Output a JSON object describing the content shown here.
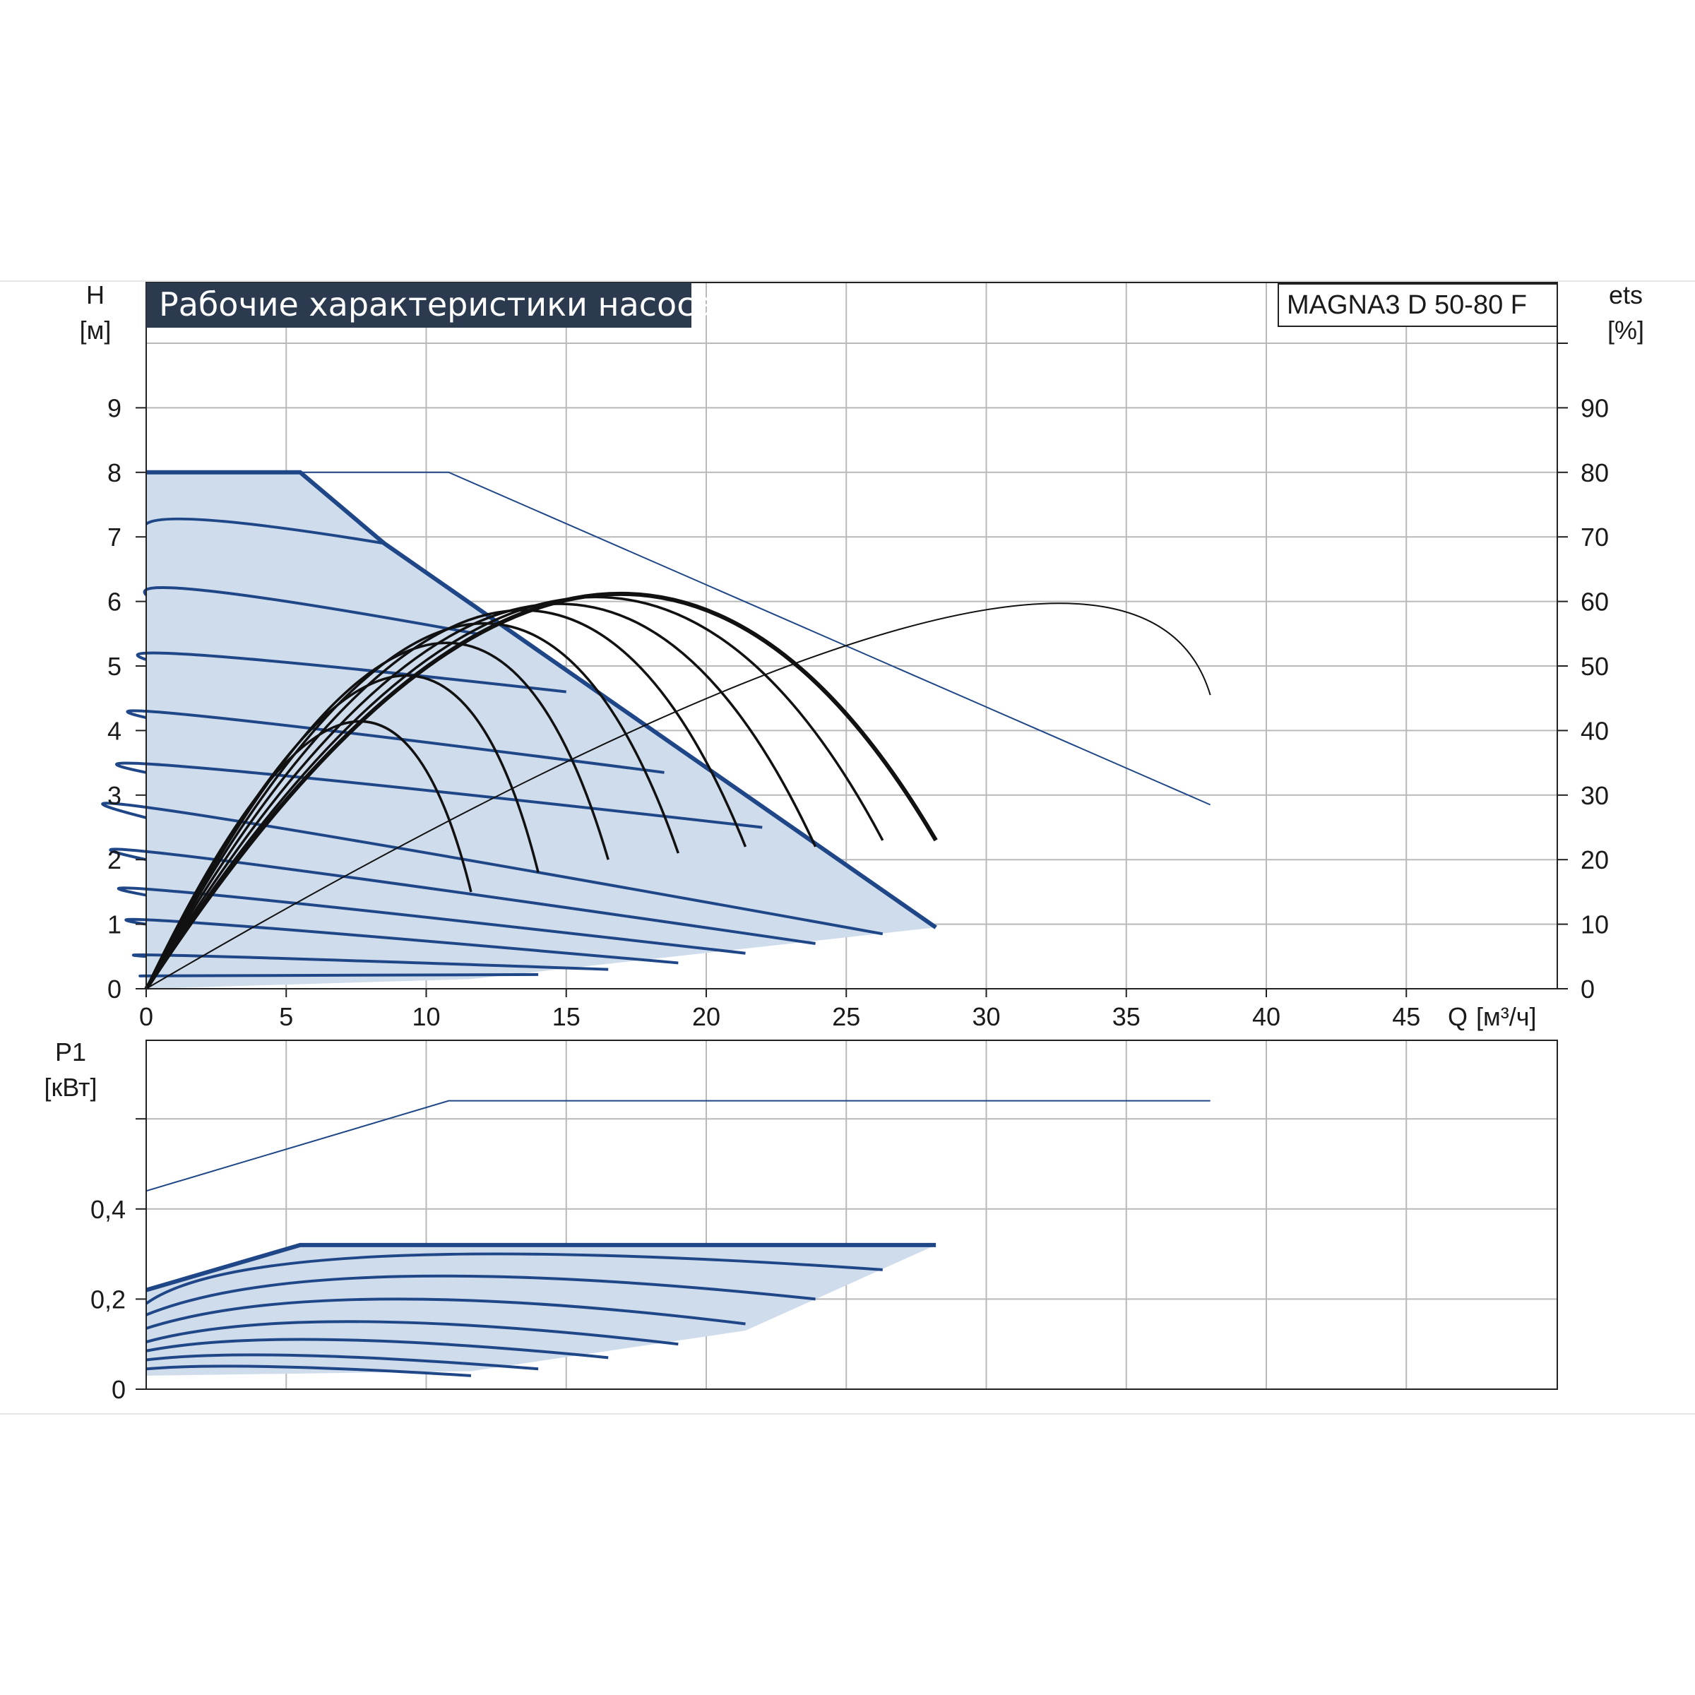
{
  "chart_data": [
    {
      "type": "line",
      "title": "Рабочие характеристики насоса",
      "model": "MAGNA3 D 50-80 F",
      "ylabel": "H",
      "yunit": "[м]",
      "y2label": "ets",
      "y2unit": "[%]",
      "xlabel": "Q",
      "xunit": "[м³/ч]",
      "xlim": [
        0,
        50
      ],
      "ylim": [
        0,
        10
      ],
      "y2lim": [
        0,
        100
      ],
      "x_ticks": [
        "0",
        "5",
        "10",
        "15",
        "20",
        "25",
        "30",
        "35",
        "40",
        "45"
      ],
      "y_ticks": [
        "0",
        "1",
        "2",
        "3",
        "4",
        "5",
        "6",
        "7",
        "8",
        "9"
      ],
      "y2_ticks": [
        "0",
        "10",
        "20",
        "30",
        "40",
        "50",
        "60",
        "70",
        "80",
        "90"
      ],
      "grid": true,
      "colors": {
        "fill": "#cfdcec",
        "curve": "#1f4788",
        "efficiency": "#111111",
        "title_bg": "#2b3a4e"
      },
      "operating_range_envelope": {
        "x": [
          0,
          5.5,
          8.5,
          28.2,
          28.2,
          11.6,
          0
        ],
        "y": [
          8.0,
          8.0,
          6.9,
          0.95,
          0.95,
          0.15,
          0.0
        ]
      },
      "speed_curves_h": [
        {
          "x": [
            0,
            2.5,
            8.5
          ],
          "y": [
            7.2,
            7.25,
            6.9
          ]
        },
        {
          "x": [
            0,
            2.5,
            11.8
          ],
          "y": [
            6.1,
            6.15,
            5.5
          ]
        },
        {
          "x": [
            0,
            2.5,
            15
          ],
          "y": [
            5.1,
            5.15,
            4.6
          ]
        },
        {
          "x": [
            0,
            2.5,
            18.5
          ],
          "y": [
            4.2,
            4.2,
            3.35
          ]
        },
        {
          "x": [
            0,
            2.5,
            22.0
          ],
          "y": [
            3.35,
            3.4,
            2.5
          ]
        },
        {
          "x": [
            0,
            2.5,
            26.3
          ],
          "y": [
            2.65,
            2.65,
            0.85
          ]
        },
        {
          "x": [
            0,
            2.5,
            23.9
          ],
          "y": [
            2.0,
            2.0,
            0.7
          ]
        },
        {
          "x": [
            0,
            2.5,
            21.4
          ],
          "y": [
            1.45,
            1.45,
            0.55
          ]
        },
        {
          "x": [
            0,
            2.5,
            19.0
          ],
          "y": [
            1.0,
            1.0,
            0.4
          ]
        },
        {
          "x": [
            0,
            2.5,
            16.5
          ],
          "y": [
            0.5,
            0.5,
            0.3
          ]
        },
        {
          "x": [
            0,
            2.5,
            14.0
          ],
          "y": [
            0.2,
            0.2,
            0.22
          ]
        }
      ],
      "max_curve_h": {
        "x": [
          0,
          10.8,
          38
        ],
        "y": [
          8.0,
          8.0,
          2.85
        ]
      },
      "efficiency_curves_pct": [
        {
          "x": [
            0,
            7.0,
            11.6
          ],
          "y": [
            0,
            41,
            15
          ]
        },
        {
          "x": [
            0,
            8.5,
            14.0
          ],
          "y": [
            0,
            48,
            18
          ]
        },
        {
          "x": [
            0,
            9.8,
            16.5
          ],
          "y": [
            0,
            53,
            20
          ]
        },
        {
          "x": [
            0,
            11.0,
            19.0
          ],
          "y": [
            0,
            56,
            21
          ]
        },
        {
          "x": [
            0,
            12.2,
            21.4
          ],
          "y": [
            0,
            58,
            22
          ]
        },
        {
          "x": [
            0,
            13.4,
            23.9
          ],
          "y": [
            0,
            59,
            22
          ]
        },
        {
          "x": [
            0,
            14.5,
            26.3
          ],
          "y": [
            0,
            60,
            23
          ]
        },
        {
          "x": [
            0,
            15.3,
            28.2
          ],
          "y": [
            0,
            60.5,
            23
          ]
        }
      ],
      "max_efficiency_pct": {
        "x": [
          0,
          27.0,
          38
        ],
        "y": [
          0,
          55.8,
          45.5
        ]
      }
    },
    {
      "type": "line",
      "ylabel": "P1",
      "yunit": "[кВт]",
      "xlim": [
        0,
        50
      ],
      "ylim": [
        0,
        0.8
      ],
      "y_ticks": [
        "0",
        "0,2",
        "0,4"
      ],
      "grid": true,
      "operating_range_envelope": {
        "x": [
          0,
          5.5,
          28.2,
          21.4,
          11.6,
          0
        ],
        "y": [
          0.22,
          0.32,
          0.32,
          0.13,
          0.04,
          0.03
        ]
      },
      "power_curves": [
        {
          "x": [
            0,
            5.5,
            28.2
          ],
          "y": [
            0.22,
            0.32,
            0.32
          ]
        },
        {
          "x": [
            0,
            8.5,
            26.3
          ],
          "y": [
            0.19,
            0.295,
            0.265
          ]
        },
        {
          "x": [
            0,
            9.0,
            23.9
          ],
          "y": [
            0.165,
            0.25,
            0.2
          ]
        },
        {
          "x": [
            0,
            8.5,
            21.4
          ],
          "y": [
            0.135,
            0.2,
            0.145
          ]
        },
        {
          "x": [
            0,
            7.5,
            19.0
          ],
          "y": [
            0.105,
            0.15,
            0.1
          ]
        },
        {
          "x": [
            0,
            6.5,
            16.5
          ],
          "y": [
            0.085,
            0.11,
            0.07
          ]
        },
        {
          "x": [
            0,
            5.5,
            14.0
          ],
          "y": [
            0.065,
            0.075,
            0.045
          ]
        },
        {
          "x": [
            0,
            4.5,
            11.6
          ],
          "y": [
            0.045,
            0.05,
            0.03
          ]
        }
      ],
      "max_power_curve": {
        "x": [
          0,
          10.8,
          38
        ],
        "y": [
          0.44,
          0.64,
          0.64
        ]
      }
    }
  ]
}
